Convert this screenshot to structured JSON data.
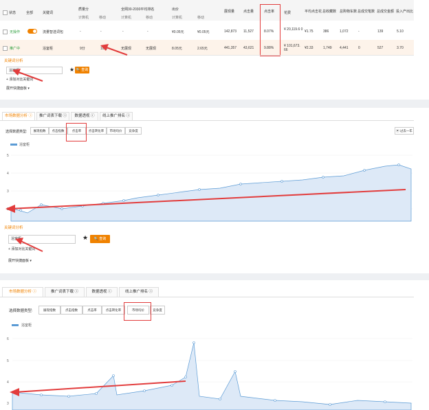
{
  "table": {
    "headers": {
      "status": "状态",
      "device": "全部",
      "keyword": "关键词",
      "quality": "质量分",
      "rank_label": "全网30-2030平均排名",
      "bid": "出价",
      "impressions": "展现量",
      "clicks": "点击量",
      "ctr": "点击率",
      "cost": "花费",
      "avg_cpc": "平均点击花",
      "collect": "总收藏数",
      "cart_conv": "总购物车数",
      "cart": "总成交笔数",
      "roi_label": "总成交金额",
      "roi": "投入产出比",
      "sub_quality_pc": "计算机",
      "sub_quality_mob": "移动",
      "sub_rank_pc": "计算机",
      "sub_rank_mob": "移动",
      "sub_bid_pc": "计算机",
      "sub_bid_mob": "移动"
    },
    "rows": [
      {
        "status": "无操作",
        "keyword": "流量智选词包",
        "quality_pc": "-",
        "quality_mob": "-",
        "rank_pc": "-",
        "rank_mob": "-",
        "bid_pc": "¥0.05元",
        "bid_mob": "¥0.05元",
        "impressions": "142,873",
        "clicks": "11,527",
        "ctr": "8.07%",
        "cost": "¥ 20,119.6 0",
        "avg_cpc": "¥1.75",
        "collect": "386",
        "cart_conv": "1,072",
        "cart": "-",
        "roi_label": "139",
        "roi": "5.10"
      },
      {
        "status": "推广中",
        "keyword": "浴室柜",
        "quality_pc": "9分",
        "quality_mob": "10分",
        "rank_pc": "无展现",
        "rank_mob": "无展现",
        "bid_pc": "8.05元",
        "bid_mob": "2.65元",
        "impressions": "441,357",
        "clicks": "43,621",
        "ctr": "9.88%",
        "cost": "¥ 101,673. 66",
        "avg_cpc": "¥2.33",
        "collect": "1,749",
        "cart_conv": "4,441",
        "cart": "0",
        "roi_label": "527",
        "roi": "3.70"
      }
    ]
  },
  "keyword_panel_1": {
    "title": "关键词分析",
    "input_value": "浴室柜",
    "query_button": "查询",
    "add_compare": "添加对比关键词",
    "expand_tools": "展开快捷面板"
  },
  "tabs": [
    "市场数据分析",
    "推广词表下载",
    "数据透视",
    "线上推广排名"
  ],
  "metric_label": "选择数据类型:",
  "segments": [
    "展现指数",
    "点击指数",
    "点击率",
    "点击转化率",
    "市场均价",
    "竞争度"
  ],
  "range_button": "过去一年",
  "legend": "浴室柜",
  "chart1_yticks": [
    "5",
    "4",
    "3",
    "2"
  ],
  "chart2_yticks": [
    "6",
    "5",
    "4",
    "3"
  ],
  "keyword_panel_2": {
    "title": "关键词分析",
    "input_value": "浴室柜",
    "query_button": "查询",
    "add_compare": "添加对比关键词",
    "expand_tools": "展开快捷面板"
  },
  "colors": {
    "accent": "#f08200",
    "highlight": "#e23c3c",
    "series": "#5b9bd5"
  }
}
